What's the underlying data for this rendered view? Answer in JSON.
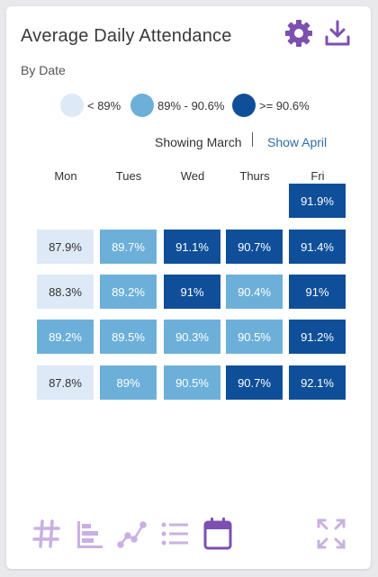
{
  "header": {
    "title": "Average Daily Attendance",
    "subtitle": "By Date",
    "settings_icon": "gear-icon",
    "download_icon": "download-icon"
  },
  "legend": [
    {
      "label": "< 89%",
      "color": "#dde9f6"
    },
    {
      "label": "89% - 90.6%",
      "color": "#6cb0da"
    },
    {
      "label": ">= 90.6%",
      "color": "#0f4f9a"
    }
  ],
  "month_switch": {
    "current": "Showing March",
    "link": "Show April"
  },
  "calendar": {
    "days": [
      "Mon",
      "Tues",
      "Wed",
      "Thurs",
      "Fri"
    ],
    "weeks": [
      [
        null,
        null,
        null,
        null,
        {
          "value": "91.9%",
          "level": "high"
        }
      ],
      [
        {
          "value": "87.9%",
          "level": "low"
        },
        {
          "value": "89.7%",
          "level": "mid"
        },
        {
          "value": "91.1%",
          "level": "high"
        },
        {
          "value": "90.7%",
          "level": "high"
        },
        {
          "value": "91.4%",
          "level": "high"
        }
      ],
      [
        {
          "value": "88.3%",
          "level": "low"
        },
        {
          "value": "89.2%",
          "level": "mid"
        },
        {
          "value": "91%",
          "level": "high"
        },
        {
          "value": "90.4%",
          "level": "mid"
        },
        {
          "value": "91%",
          "level": "high"
        }
      ],
      [
        {
          "value": "89.2%",
          "level": "mid"
        },
        {
          "value": "89.5%",
          "level": "mid"
        },
        {
          "value": "90.3%",
          "level": "mid"
        },
        {
          "value": "90.5%",
          "level": "mid"
        },
        {
          "value": "91.2%",
          "level": "high"
        }
      ],
      [
        {
          "value": "87.8%",
          "level": "low"
        },
        {
          "value": "89%",
          "level": "mid"
        },
        {
          "value": "90.5%",
          "level": "mid"
        },
        {
          "value": "90.7%",
          "level": "high"
        },
        {
          "value": "92.1%",
          "level": "high"
        }
      ]
    ]
  },
  "toolbar": {
    "views": [
      "hash-icon",
      "bar-chart-icon",
      "line-chart-icon",
      "list-icon",
      "calendar-icon"
    ],
    "active_view": "calendar-icon",
    "expand_icon": "expand-icon"
  },
  "colors": {
    "accent": "#7d4fb0",
    "accent_light": "#c9b0e3",
    "link": "#2f6fa7"
  }
}
